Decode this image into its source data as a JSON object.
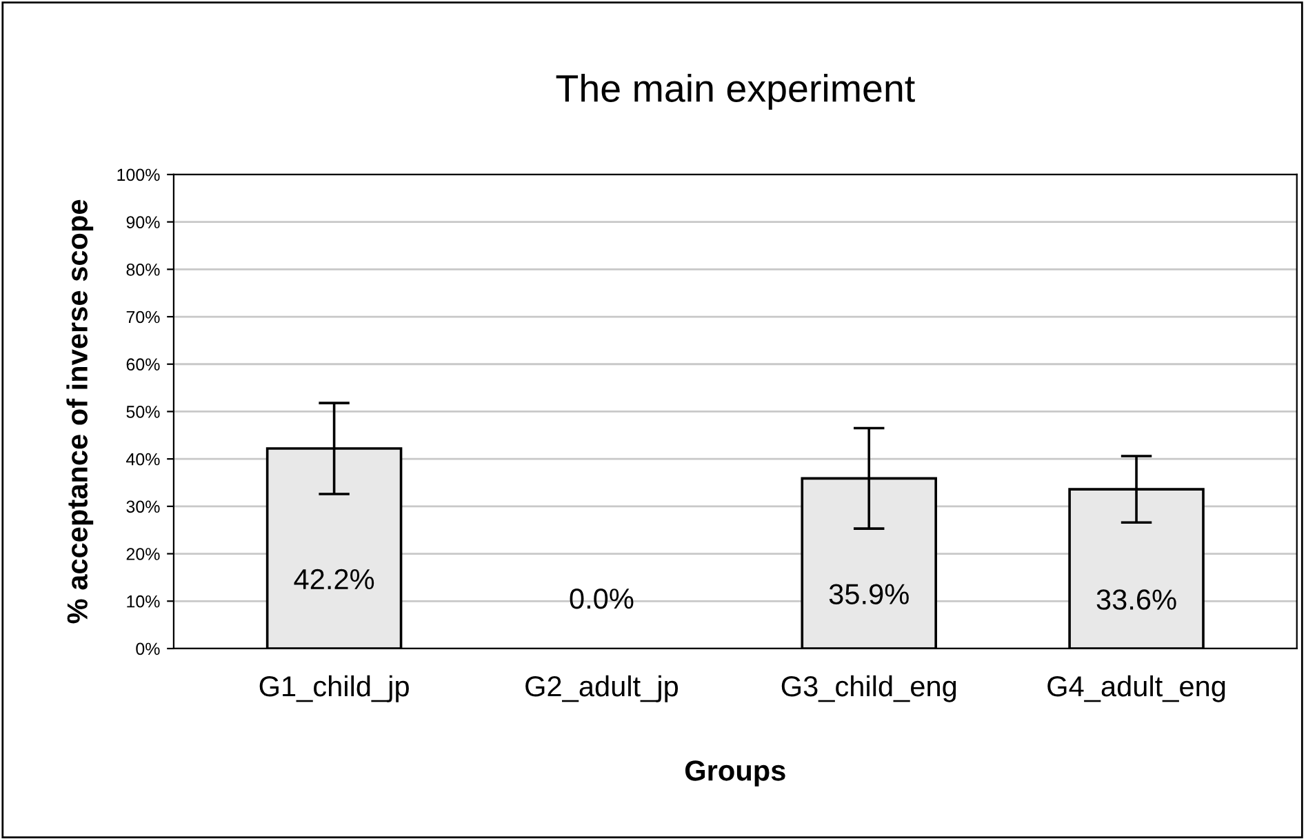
{
  "chart_data": {
    "type": "bar",
    "title": "The main experiment",
    "xlabel": "Groups",
    "ylabel": "% acceptance of inverse scope",
    "categories": [
      "G1_child_jp",
      "G2_adult_jp",
      "G3_child_eng",
      "G4_adult_eng"
    ],
    "values": [
      42.2,
      0.0,
      35.9,
      33.6
    ],
    "errors": [
      9.6,
      null,
      10.6,
      7.0
    ],
    "value_labels": [
      "42.2%",
      "0.0%",
      "35.9%",
      "33.6%"
    ],
    "color": "#e8e8e8",
    "ylim": [
      0,
      100
    ],
    "yticks": [
      {
        "value": 0,
        "label": "0%"
      },
      {
        "value": 10,
        "label": "10%"
      },
      {
        "value": 20,
        "label": "20%"
      },
      {
        "value": 30,
        "label": "30%"
      },
      {
        "value": 40,
        "label": "40%"
      },
      {
        "value": 50,
        "label": "50%"
      },
      {
        "value": 60,
        "label": "60%"
      },
      {
        "value": 70,
        "label": "70%"
      },
      {
        "value": 80,
        "label": "80%"
      },
      {
        "value": 90,
        "label": "90%"
      },
      {
        "value": 100,
        "label": "100%"
      }
    ],
    "grid": "y"
  }
}
